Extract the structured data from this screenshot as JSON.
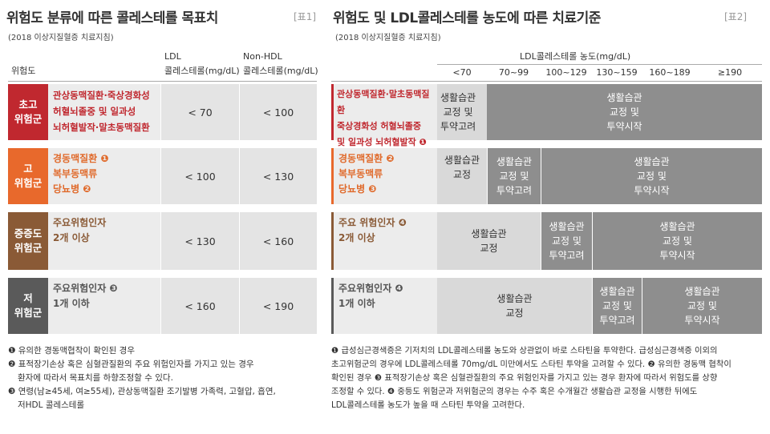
{
  "left": {
    "title": "위험도 분류에 따른 콜레스테롤 목표치",
    "tag": "[표1]",
    "subtitle": "(2018 이상지질혈증 치료지침)",
    "col_risk": "위험도",
    "col_ldl_1": "LDL",
    "col_ldl_2": "콜레스테롤(mg/dL)",
    "col_nonhdl_1": "Non-HDL",
    "col_nonhdl_2": "콜레스테롤(mg/dL)",
    "rows": [
      {
        "label": "초고\n위험군",
        "cond": "관상동맥질환·죽상경화성\n허혈뇌졸중 및 일과성\n뇌허혈발작·말초동맥질환",
        "ldl": "< 70",
        "nonhdl": "< 100",
        "color": "#c0282f"
      },
      {
        "label": "고\n위험군",
        "cond": "경동맥질환 ❶\n복부동맥류\n당뇨병 ❷",
        "ldl": "< 100",
        "nonhdl": "< 130",
        "color": "#e8692c"
      },
      {
        "label": "중증도\n위험군",
        "cond": "주요위험인자\n2개 이상",
        "ldl": "< 130",
        "nonhdl": "< 160",
        "color": "#8a5a36"
      },
      {
        "label": "저\n위험군",
        "cond": "주요위험인자 ❸\n1개 이하",
        "ldl": "< 160",
        "nonhdl": "< 190",
        "color": "#5a5a5a"
      }
    ],
    "notes": [
      "❶ 유의한 경동맥협착이 확인된 경우",
      "❷ 표적장기손상 혹은 심혈관질환의 주요 위험인자를 가지고 있는 경우",
      "   환자에 따라서 목표치를 하향조정할 수 있다.",
      "❸ 연령(남≥45세, 여≥55세), 관상동맥질환 조기발병 가족력, 고혈압, 흡연,",
      "   저HDL 콜레스테롤"
    ]
  },
  "right": {
    "title": "위험도 및 LDL콜레스테롤 농도에 따른 치료기준",
    "tag": "[표2]",
    "subtitle": "(2018 이상지질혈증 치료지침)",
    "col_header": "LDL콜레스테롤 농도(mg/dL)",
    "ranges": [
      "<70",
      "70~99",
      "100~129",
      "130~159",
      "160~189",
      "≥190"
    ],
    "rows": [
      {
        "cond": "관상동맥질환·말초동맥질환\n죽상경화성 허혈뇌졸중\n및 일과성 뇌허혈발작 ❶",
        "a": "생활습관\n교정 및\n투약고려",
        "b": "생활습관\n교정 및\n투약시작"
      },
      {
        "cond": "경동맥질환 ❷\n복부동맥류\n당뇨병 ❸",
        "a": "생활습관\n교정",
        "b": "생활습관\n교정 및\n투약고려",
        "c": "생활습관\n교정 및\n투약시작"
      },
      {
        "cond": "주요 위험인자 ❹\n2개 이상",
        "a": "생활습관\n교정",
        "b": "생활습관\n교정 및\n투약고려",
        "c": "생활습관\n교정 및\n투약시작"
      },
      {
        "cond": "주요위험인자 ❹\n1개 이하",
        "a": "생활습관\n교정",
        "b": "생활습관\n교정 및\n투약고려",
        "c": "생활습관\n교정 및\n투약시작"
      }
    ],
    "notes": [
      "❶ 급성심근경색증은 기저치의 LDL콜레스테롤 농도와 상관없이 바로 스타틴을 투약한다. 급성심근경색증 이외의",
      "초고위험군의 경우에 LDL콜레스테롤 70mg/dL 미만에서도 스타틴 투약을 고려할 수 있다. ❷ 유의한 경동맥 협착이",
      "확인된 경우 ❸ 표적장기손상 혹은 심혈관질환의 주요 위험인자를 가지고 있는 경우 환자에 따라서 위험도를 상향",
      "조정할 수 있다. ❹ 중등도 위험군과 저위험군의 경우는 수주 혹은 수개월간 생활습관 교정을 시행한 뒤에도",
      "LDL콜레스테롤 농도가  높을 때 스타틴 투약을 고려한다."
    ]
  }
}
